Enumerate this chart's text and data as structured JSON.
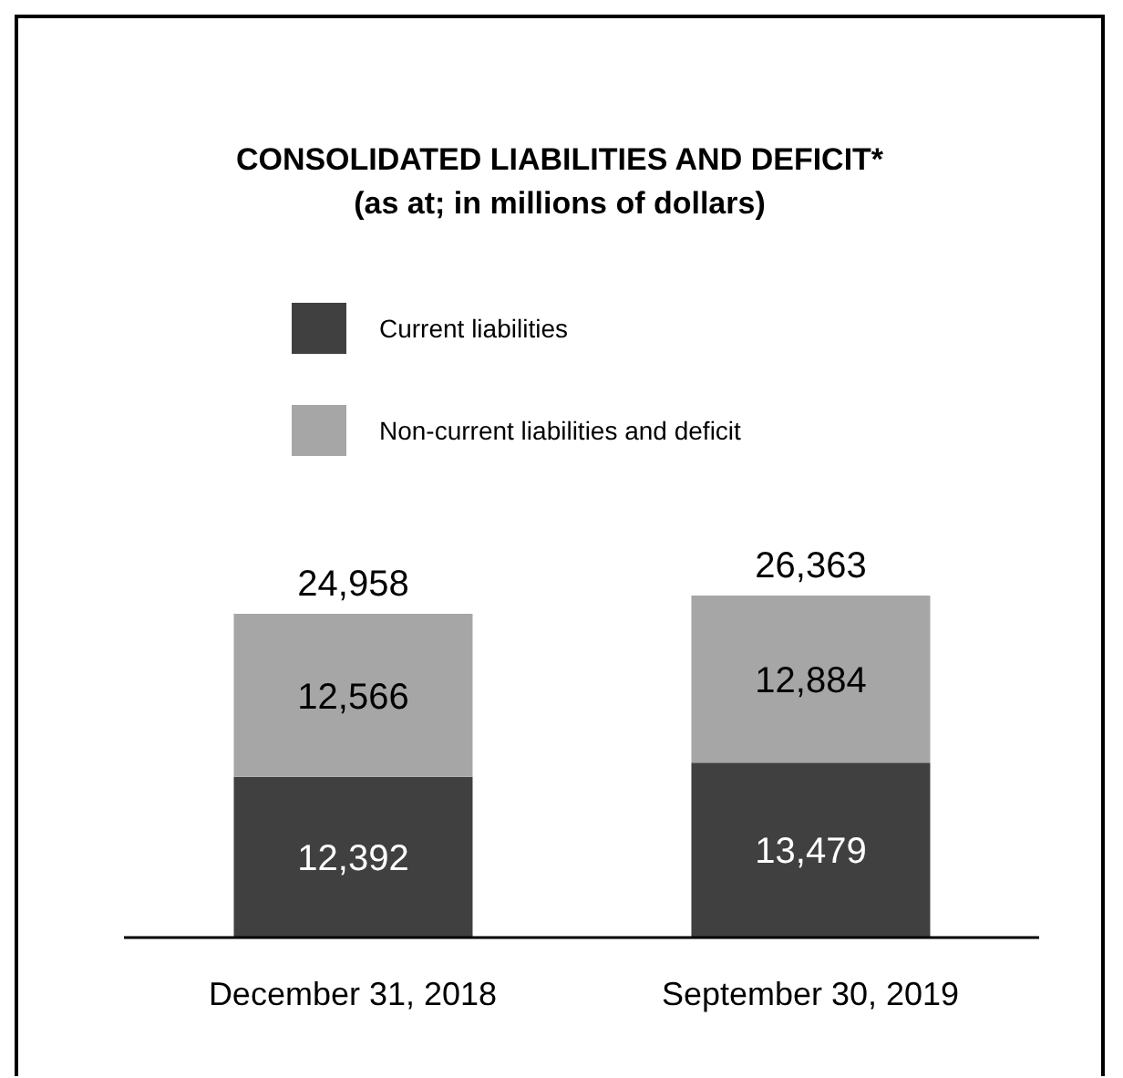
{
  "chart_data": {
    "type": "bar",
    "title": "CONSOLIDATED LIABILITIES AND DEFICIT*",
    "subtitle": "(as at; in millions of dollars)",
    "categories": [
      "December 31, 2018",
      "September 30, 2019"
    ],
    "stacked": true,
    "legend": "top",
    "grid": false,
    "series": [
      {
        "name": "Current liabilities",
        "color": "#404040",
        "values": [
          12392,
          13479
        ],
        "value_labels": [
          "12,392",
          "13,479"
        ]
      },
      {
        "name": "Non-current liabilities and deficit",
        "color": "#a6a6a6",
        "values": [
          12566,
          12884
        ],
        "value_labels": [
          "12,566",
          "12,884"
        ]
      }
    ],
    "totals": [
      "24,958",
      "26,363"
    ]
  }
}
